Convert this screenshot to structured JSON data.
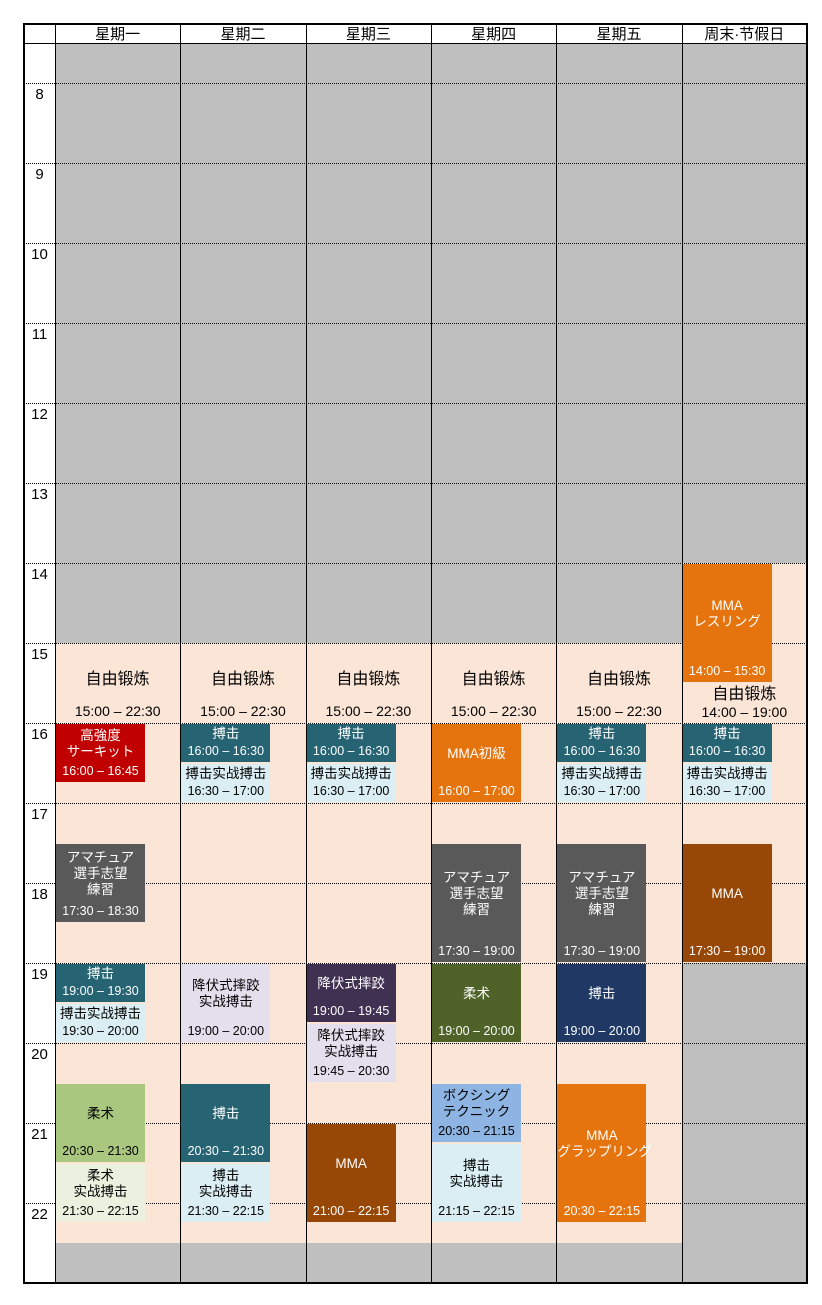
{
  "header": {
    "corner": "",
    "days": [
      "星期一",
      "星期二",
      "星期三",
      "星期四",
      "星期五",
      "周末·节假日"
    ]
  },
  "hours": [
    "8",
    "9",
    "10",
    "11",
    "12",
    "13",
    "14",
    "15",
    "16",
    "17",
    "18",
    "19",
    "20",
    "21",
    "22"
  ],
  "colors": {
    "closed_bg": "#BFBFBF",
    "open_bg": "#FBE5D6",
    "grid_line": "#000000",
    "page_bg": "#FFFFFF",
    "teal": "#266373",
    "light_blue": "#DAEEF3",
    "red": "#C00000",
    "dark_gray": "#595959",
    "lavender": "#E4DFEC",
    "dark_purple": "#403152",
    "green": "#A9C77F",
    "light_green": "#EBF1DE",
    "dark_olive": "#4F6228",
    "navy": "#1F3864",
    "cornflower": "#8DB4E2",
    "orange": "#E6740E",
    "brown": "#974706"
  },
  "open_hours": [
    {
      "day": 0,
      "label": "自由锻炼",
      "time": "15:00 – 22:30",
      "open_from": 15,
      "open_to": 22.5,
      "style": "weekday"
    },
    {
      "day": 1,
      "label": "自由锻炼",
      "time": "15:00 – 22:30",
      "open_from": 15,
      "open_to": 22.5,
      "style": "weekday"
    },
    {
      "day": 2,
      "label": "自由锻炼",
      "time": "15:00 – 22:30",
      "open_from": 15,
      "open_to": 22.5,
      "style": "weekday"
    },
    {
      "day": 3,
      "label": "自由锻炼",
      "time": "15:00 – 22:30",
      "open_from": 15,
      "open_to": 22.5,
      "style": "weekday"
    },
    {
      "day": 4,
      "label": "自由锻炼",
      "time": "15:00 – 22:30",
      "open_from": 15,
      "open_to": 22.5,
      "style": "weekday"
    },
    {
      "day": 5,
      "label": "自由锻炼",
      "time": "14:00 – 19:00",
      "open_from": 14,
      "open_to": 19,
      "style": "weekend"
    }
  ],
  "events": [
    {
      "day": 0,
      "title": [
        "高強度",
        "サーキット"
      ],
      "time": "16:00 – 16:45",
      "start": 16,
      "end": 16.75,
      "bg": "#C00000",
      "fg": "#FFFFFF"
    },
    {
      "day": 0,
      "title": [
        "アマチュア",
        "選手志望",
        "練習"
      ],
      "time": "17:30 – 18:30",
      "start": 17.5,
      "end": 18.5,
      "bg": "#595959",
      "fg": "#FFFFFF"
    },
    {
      "day": 0,
      "title": [
        "搏击"
      ],
      "time": "19:00 – 19:30",
      "start": 19,
      "end": 19.5,
      "bg": "#266373",
      "fg": "#FFFFFF"
    },
    {
      "day": 0,
      "title": [
        "搏击实战搏击"
      ],
      "time": "19:30 – 20:00",
      "start": 19.5,
      "end": 20,
      "bg": "#DAEEF3",
      "fg": "#000000"
    },
    {
      "day": 0,
      "title": [
        "柔术"
      ],
      "time": "20:30 – 21:30",
      "start": 20.5,
      "end": 21.5,
      "bg": "#A9C77F",
      "fg": "#000000"
    },
    {
      "day": 0,
      "title": [
        "柔术",
        "实战搏击"
      ],
      "time": "21:30 – 22:15",
      "start": 21.5,
      "end": 22.25,
      "bg": "#EBF1DE",
      "fg": "#000000"
    },
    {
      "day": 1,
      "title": [
        "搏击"
      ],
      "time": "16:00 – 16:30",
      "start": 16,
      "end": 16.5,
      "bg": "#266373",
      "fg": "#FFFFFF"
    },
    {
      "day": 1,
      "title": [
        "搏击实战搏击"
      ],
      "time": "16:30 – 17:00",
      "start": 16.5,
      "end": 17,
      "bg": "#DAEEF3",
      "fg": "#000000"
    },
    {
      "day": 1,
      "title": [
        "降伏式摔跤",
        "实战搏击"
      ],
      "time": "19:00 – 20:00",
      "start": 19,
      "end": 20,
      "bg": "#E4DFEC",
      "fg": "#000000"
    },
    {
      "day": 1,
      "title": [
        "搏击"
      ],
      "time": "20:30 – 21:30",
      "start": 20.5,
      "end": 21.5,
      "bg": "#266373",
      "fg": "#FFFFFF"
    },
    {
      "day": 1,
      "title": [
        "搏击",
        "实战搏击"
      ],
      "time": "21:30 – 22:15",
      "start": 21.5,
      "end": 22.25,
      "bg": "#DAEEF3",
      "fg": "#000000"
    },
    {
      "day": 2,
      "title": [
        "搏击"
      ],
      "time": "16:00 – 16:30",
      "start": 16,
      "end": 16.5,
      "bg": "#266373",
      "fg": "#FFFFFF"
    },
    {
      "day": 2,
      "title": [
        "搏击实战搏击"
      ],
      "time": "16:30 – 17:00",
      "start": 16.5,
      "end": 17,
      "bg": "#DAEEF3",
      "fg": "#000000"
    },
    {
      "day": 2,
      "title": [
        "降伏式摔跤"
      ],
      "time": "19:00 – 19:45",
      "start": 19,
      "end": 19.75,
      "bg": "#403152",
      "fg": "#FFFFFF"
    },
    {
      "day": 2,
      "title": [
        "降伏式摔跤",
        "实战搏击"
      ],
      "time": "19:45 – 20:30",
      "start": 19.75,
      "end": 20.5,
      "bg": "#E4DFEC",
      "fg": "#000000"
    },
    {
      "day": 2,
      "title": [
        "MMA"
      ],
      "time": "21:00 – 22:15",
      "start": 21,
      "end": 22.25,
      "bg": "#974706",
      "fg": "#FFFFFF"
    },
    {
      "day": 3,
      "title": [
        "MMA初級"
      ],
      "time": "16:00 – 17:00",
      "start": 16,
      "end": 17,
      "bg": "#E6740E",
      "fg": "#FFFFFF"
    },
    {
      "day": 3,
      "title": [
        "アマチュア",
        "選手志望",
        "練習"
      ],
      "time": "17:30 – 19:00",
      "start": 17.5,
      "end": 19,
      "bg": "#595959",
      "fg": "#FFFFFF"
    },
    {
      "day": 3,
      "title": [
        "柔术"
      ],
      "time": "19:00 – 20:00",
      "start": 19,
      "end": 20,
      "bg": "#4F6228",
      "fg": "#FFFFFF"
    },
    {
      "day": 3,
      "title": [
        "ボクシング",
        "テクニック"
      ],
      "time": "20:30 – 21:15",
      "start": 20.5,
      "end": 21.25,
      "bg": "#8DB4E2",
      "fg": "#000000"
    },
    {
      "day": 3,
      "title": [
        "搏击",
        "实战搏击"
      ],
      "time": "21:15 – 22:15",
      "start": 21.25,
      "end": 22.25,
      "bg": "#DAEEF3",
      "fg": "#000000"
    },
    {
      "day": 4,
      "title": [
        "搏击"
      ],
      "time": "16:00 – 16:30",
      "start": 16,
      "end": 16.5,
      "bg": "#266373",
      "fg": "#FFFFFF"
    },
    {
      "day": 4,
      "title": [
        "搏击实战搏击"
      ],
      "time": "16:30 – 17:00",
      "start": 16.5,
      "end": 17,
      "bg": "#DAEEF3",
      "fg": "#000000"
    },
    {
      "day": 4,
      "title": [
        "アマチュア",
        "選手志望",
        "練習"
      ],
      "time": "17:30 – 19:00",
      "start": 17.5,
      "end": 19,
      "bg": "#595959",
      "fg": "#FFFFFF"
    },
    {
      "day": 4,
      "title": [
        "搏击"
      ],
      "time": "19:00 – 20:00",
      "start": 19,
      "end": 20,
      "bg": "#1F3864",
      "fg": "#FFFFFF"
    },
    {
      "day": 4,
      "title": [
        "MMA",
        "グラップリング"
      ],
      "time": "20:30 – 22:15",
      "start": 20.5,
      "end": 22.25,
      "bg": "#E6740E",
      "fg": "#FFFFFF"
    },
    {
      "day": 5,
      "title": [
        "MMA",
        "レスリング"
      ],
      "time": "14:00 – 15:30",
      "start": 14,
      "end": 15.5,
      "bg": "#E6740E",
      "fg": "#FFFFFF"
    },
    {
      "day": 5,
      "title": [
        "搏击"
      ],
      "time": "16:00 – 16:30",
      "start": 16,
      "end": 16.5,
      "bg": "#266373",
      "fg": "#FFFFFF"
    },
    {
      "day": 5,
      "title": [
        "搏击实战搏击"
      ],
      "time": "16:30 – 17:00",
      "start": 16.5,
      "end": 17,
      "bg": "#DAEEF3",
      "fg": "#000000"
    },
    {
      "day": 5,
      "title": [
        "MMA"
      ],
      "time": "17:30 – 19:00",
      "start": 17.5,
      "end": 19,
      "bg": "#974706",
      "fg": "#FFFFFF"
    }
  ]
}
